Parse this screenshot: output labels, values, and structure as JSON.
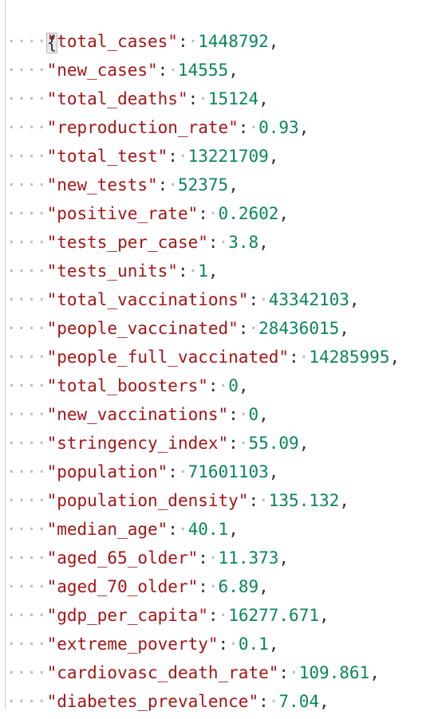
{
  "editor": {
    "open_brace": "{",
    "entries": [
      {
        "key": "\"total_cases\"",
        "value": "1448792",
        "comma": ","
      },
      {
        "key": "\"new_cases\"",
        "value": "14555",
        "comma": ","
      },
      {
        "key": "\"total_deaths\"",
        "value": "15124",
        "comma": ","
      },
      {
        "key": "\"reproduction_rate\"",
        "value": "0.93",
        "comma": ","
      },
      {
        "key": "\"total_test\"",
        "value": "13221709",
        "comma": ","
      },
      {
        "key": "\"new_tests\"",
        "value": "52375",
        "comma": ","
      },
      {
        "key": "\"positive_rate\"",
        "value": "0.2602",
        "comma": ","
      },
      {
        "key": "\"tests_per_case\"",
        "value": "3.8",
        "comma": ","
      },
      {
        "key": "\"tests_units\"",
        "value": "1",
        "comma": ","
      },
      {
        "key": "\"total_vaccinations\"",
        "value": "43342103",
        "comma": ","
      },
      {
        "key": "\"people_vaccinated\"",
        "value": "28436015",
        "comma": ","
      },
      {
        "key": "\"people_full_vaccinated\"",
        "value": "14285995",
        "comma": ","
      },
      {
        "key": "\"total_boosters\"",
        "value": "0",
        "comma": ","
      },
      {
        "key": "\"new_vaccinations\"",
        "value": "0",
        "comma": ","
      },
      {
        "key": "\"stringency_index\"",
        "value": "55.09",
        "comma": ","
      },
      {
        "key": "\"population\"",
        "value": "71601103",
        "comma": ","
      },
      {
        "key": "\"population_density\"",
        "value": "135.132",
        "comma": ","
      },
      {
        "key": "\"median_age\"",
        "value": "40.1",
        "comma": ","
      },
      {
        "key": "\"aged_65_older\"",
        "value": "11.373",
        "comma": ","
      },
      {
        "key": "\"aged_70_older\"",
        "value": "6.89",
        "comma": ","
      },
      {
        "key": "\"gdp_per_capita\"",
        "value": "16277.671",
        "comma": ","
      },
      {
        "key": "\"extreme_poverty\"",
        "value": "0.1",
        "comma": ","
      },
      {
        "key": "\"cardiovasc_death_rate\"",
        "value": "109.861",
        "comma": ","
      },
      {
        "key": "\"diabetes_prevalence\"",
        "value": "7.04",
        "comma": ","
      }
    ],
    "colors": {
      "key": "#a31515",
      "number": "#098658",
      "whitespace_dot": "#b8b8b8"
    }
  }
}
